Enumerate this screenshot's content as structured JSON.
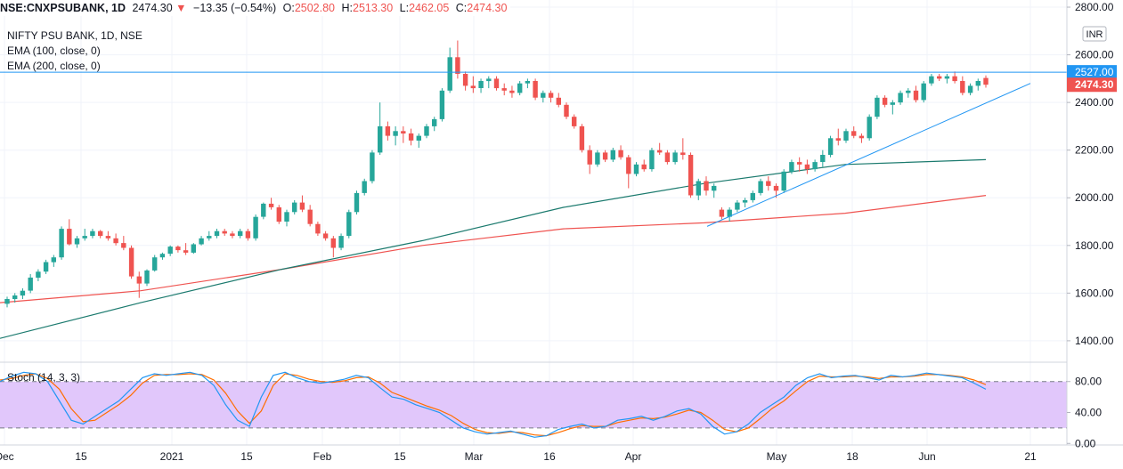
{
  "header": {
    "symbol": "NSE:CNXPSUBANK, 1D",
    "last": "2474.30",
    "change_arrow": "▼",
    "change": "−13.35 (−0.54%)",
    "o_label": "O:",
    "o_value": "2502.80",
    "h_label": "H:",
    "h_value": "2513.30",
    "l_label": "L:",
    "l_value": "2462.05",
    "c_label": "C:",
    "c_value": "2474.30"
  },
  "legend": {
    "title": "NIFTY PSU BANK, 1D, NSE",
    "ema100": "EMA (100, close, 0)",
    "ema200": "EMA (200, close, 0)"
  },
  "currency": "INR",
  "colors": {
    "up": "#26a69a",
    "down": "#ef5350",
    "ema100": "#1b7a6e",
    "ema200": "#ef5350",
    "hline": "#2196f3",
    "stoch_k": "#2196f3",
    "stoch_d": "#ff6d00",
    "stoch_band": "#e1c7fb"
  },
  "chart_data": [
    {
      "type": "candlestick",
      "x_ticks": [
        "Dec",
        "15",
        "2021",
        "15",
        "Feb",
        "15",
        "Mar",
        "16",
        "Apr",
        "May",
        "18",
        "Jun",
        "21"
      ],
      "y_ticks": [
        "2800.00",
        "2600.00",
        "2400.00",
        "2200.00",
        "2000.00",
        "1800.00",
        "1600.00",
        "1400.00"
      ],
      "ylim": [
        1310,
        2830
      ],
      "horizontal_line": 2527.0,
      "horizontal_line_label": "2527.00",
      "last_price_label": "2474.30",
      "trendline": [
        [
          1880,
          2480
        ]
      ],
      "candles": [
        [
          1555,
          1585,
          1540,
          1575
        ],
        [
          1575,
          1600,
          1560,
          1590
        ],
        [
          1590,
          1620,
          1575,
          1610
        ],
        [
          1610,
          1680,
          1600,
          1665
        ],
        [
          1665,
          1700,
          1650,
          1690
        ],
        [
          1690,
          1740,
          1680,
          1730
        ],
        [
          1730,
          1760,
          1710,
          1750
        ],
        [
          1750,
          1880,
          1740,
          1870
        ],
        [
          1870,
          1910,
          1800,
          1805
        ],
        [
          1805,
          1840,
          1790,
          1830
        ],
        [
          1830,
          1870,
          1820,
          1840
        ],
        [
          1840,
          1870,
          1830,
          1860
        ],
        [
          1860,
          1865,
          1830,
          1840
        ],
        [
          1840,
          1860,
          1820,
          1830
        ],
        [
          1830,
          1850,
          1800,
          1810
        ],
        [
          1810,
          1840,
          1780,
          1790
        ],
        [
          1790,
          1800,
          1660,
          1670
        ],
        [
          1670,
          1690,
          1580,
          1640
        ],
        [
          1640,
          1700,
          1630,
          1695
        ],
        [
          1695,
          1760,
          1690,
          1750
        ],
        [
          1750,
          1770,
          1740,
          1765
        ],
        [
          1765,
          1800,
          1755,
          1795
        ],
        [
          1795,
          1800,
          1770,
          1780
        ],
        [
          1780,
          1810,
          1760,
          1770
        ],
        [
          1770,
          1810,
          1765,
          1805
        ],
        [
          1805,
          1840,
          1800,
          1830
        ],
        [
          1830,
          1860,
          1820,
          1840
        ],
        [
          1840,
          1870,
          1830,
          1860
        ],
        [
          1860,
          1870,
          1840,
          1850
        ],
        [
          1850,
          1860,
          1830,
          1840
        ],
        [
          1840,
          1870,
          1830,
          1860
        ],
        [
          1860,
          1870,
          1820,
          1830
        ],
        [
          1830,
          1930,
          1820,
          1920
        ],
        [
          1920,
          1980,
          1910,
          1975
        ],
        [
          1975,
          2000,
          1950,
          1960
        ],
        [
          1960,
          1970,
          1890,
          1900
        ],
        [
          1900,
          1950,
          1880,
          1940
        ],
        [
          1940,
          1990,
          1930,
          1980
        ],
        [
          1980,
          2010,
          1940,
          1950
        ],
        [
          1950,
          1970,
          1880,
          1890
        ],
        [
          1890,
          1900,
          1840,
          1850
        ],
        [
          1850,
          1860,
          1820,
          1830
        ],
        [
          1830,
          1840,
          1750,
          1790
        ],
        [
          1790,
          1850,
          1780,
          1840
        ],
        [
          1840,
          1950,
          1830,
          1940
        ],
        [
          1940,
          2030,
          1930,
          2020
        ],
        [
          2020,
          2080,
          2010,
          2070
        ],
        [
          2070,
          2200,
          2060,
          2190
        ],
        [
          2190,
          2400,
          2180,
          2300
        ],
        [
          2300,
          2320,
          2240,
          2260
        ],
        [
          2260,
          2300,
          2220,
          2280
        ],
        [
          2280,
          2300,
          2230,
          2270
        ],
        [
          2270,
          2290,
          2220,
          2240
        ],
        [
          2240,
          2270,
          2210,
          2260
        ],
        [
          2260,
          2310,
          2250,
          2300
        ],
        [
          2300,
          2340,
          2280,
          2330
        ],
        [
          2330,
          2460,
          2320,
          2450
        ],
        [
          2450,
          2630,
          2440,
          2590
        ],
        [
          2590,
          2660,
          2500,
          2520
        ],
        [
          2520,
          2530,
          2450,
          2470
        ],
        [
          2470,
          2510,
          2440,
          2460
        ],
        [
          2460,
          2500,
          2440,
          2490
        ],
        [
          2490,
          2510,
          2460,
          2500
        ],
        [
          2500,
          2510,
          2450,
          2460
        ],
        [
          2460,
          2480,
          2430,
          2450
        ],
        [
          2450,
          2470,
          2420,
          2440
        ],
        [
          2440,
          2490,
          2430,
          2480
        ],
        [
          2480,
          2500,
          2460,
          2490
        ],
        [
          2490,
          2500,
          2410,
          2420
        ],
        [
          2420,
          2450,
          2400,
          2440
        ],
        [
          2440,
          2450,
          2400,
          2420
        ],
        [
          2420,
          2440,
          2380,
          2390
        ],
        [
          2390,
          2400,
          2330,
          2340
        ],
        [
          2340,
          2350,
          2290,
          2300
        ],
        [
          2300,
          2310,
          2190,
          2200
        ],
        [
          2200,
          2220,
          2100,
          2140
        ],
        [
          2140,
          2200,
          2130,
          2190
        ],
        [
          2190,
          2200,
          2150,
          2160
        ],
        [
          2160,
          2210,
          2150,
          2200
        ],
        [
          2200,
          2220,
          2160,
          2170
        ],
        [
          2170,
          2180,
          2040,
          2100
        ],
        [
          2100,
          2150,
          2090,
          2140
        ],
        [
          2140,
          2160,
          2110,
          2120
        ],
        [
          2120,
          2210,
          2110,
          2200
        ],
        [
          2200,
          2230,
          2180,
          2190
        ],
        [
          2190,
          2200,
          2140,
          2150
        ],
        [
          2150,
          2200,
          2140,
          2190
        ],
        [
          2190,
          2250,
          2160,
          2180
        ],
        [
          2180,
          2190,
          2000,
          2010
        ],
        [
          2010,
          2080,
          1990,
          2070
        ],
        [
          2070,
          2090,
          2010,
          2030
        ],
        [
          2030,
          2060,
          2000,
          2050
        ],
        [
          1950,
          1960,
          1910,
          1920
        ],
        [
          1920,
          1960,
          1900,
          1950
        ],
        [
          1950,
          1990,
          1940,
          1980
        ],
        [
          1980,
          2000,
          1960,
          1990
        ],
        [
          1990,
          2030,
          1980,
          2020
        ],
        [
          2020,
          2080,
          2010,
          2070
        ],
        [
          2070,
          2090,
          2030,
          2050
        ],
        [
          2050,
          2060,
          2000,
          2030
        ],
        [
          2030,
          2120,
          2020,
          2110
        ],
        [
          2110,
          2160,
          2100,
          2150
        ],
        [
          2150,
          2170,
          2110,
          2140
        ],
        [
          2140,
          2160,
          2100,
          2120
        ],
        [
          2120,
          2160,
          2110,
          2150
        ],
        [
          2150,
          2200,
          2130,
          2180
        ],
        [
          2180,
          2260,
          2170,
          2250
        ],
        [
          2250,
          2290,
          2220,
          2240
        ],
        [
          2240,
          2290,
          2230,
          2280
        ],
        [
          2280,
          2300,
          2250,
          2260
        ],
        [
          2260,
          2270,
          2230,
          2250
        ],
        [
          2250,
          2350,
          2240,
          2340
        ],
        [
          2340,
          2430,
          2330,
          2420
        ],
        [
          2420,
          2430,
          2380,
          2390
        ],
        [
          2390,
          2410,
          2350,
          2400
        ],
        [
          2400,
          2450,
          2390,
          2440
        ],
        [
          2440,
          2460,
          2420,
          2450
        ],
        [
          2450,
          2470,
          2400,
          2410
        ],
        [
          2410,
          2490,
          2400,
          2480
        ],
        [
          2480,
          2520,
          2470,
          2510
        ],
        [
          2510,
          2520,
          2490,
          2500
        ],
        [
          2500,
          2520,
          2480,
          2510
        ],
        [
          2510,
          2530,
          2480,
          2490
        ],
        [
          2490,
          2510,
          2430,
          2440
        ],
        [
          2440,
          2480,
          2430,
          2470
        ],
        [
          2470,
          2500,
          2450,
          2490
        ],
        [
          2502.8,
          2513.3,
          2462.05,
          2474.3
        ]
      ],
      "ema100": [
        1410,
        1560,
        1700,
        1820,
        1960,
        2060,
        2140,
        2160
      ],
      "ema200": [
        1560,
        1610,
        1700,
        1800,
        1870,
        1895,
        1935,
        2010
      ]
    },
    {
      "type": "line",
      "name": "Stoch (14, 3, 3)",
      "y_ticks": [
        "80.00",
        "40.00",
        "0.00"
      ],
      "ylim": [
        -2,
        105
      ],
      "band": [
        20,
        80
      ],
      "series": [
        {
          "values": [
            80,
            87,
            92,
            90,
            80,
            55,
            30,
            25,
            35,
            45,
            55,
            70,
            85,
            90,
            88,
            90,
            92,
            88,
            75,
            50,
            30,
            22,
            60,
            88,
            92,
            85,
            80,
            78,
            80,
            83,
            88,
            85,
            72,
            60,
            57,
            50,
            45,
            40,
            30,
            20,
            15,
            12,
            14,
            16,
            12,
            8,
            10,
            18,
            22,
            25,
            20,
            22,
            30,
            32,
            35,
            30,
            35,
            42,
            45,
            38,
            22,
            12,
            15,
            25,
            40,
            50,
            60,
            75,
            85,
            90,
            85,
            87,
            88,
            85,
            82,
            88,
            86,
            88,
            91,
            89,
            87,
            85,
            78,
            70
          ]
        },
        {
          "values": [
            82,
            84,
            88,
            90,
            84,
            70,
            45,
            28,
            30,
            40,
            50,
            62,
            78,
            88,
            89,
            89,
            90,
            89,
            82,
            65,
            42,
            26,
            42,
            75,
            90,
            88,
            83,
            80,
            79,
            81,
            85,
            86,
            78,
            66,
            60,
            54,
            48,
            43,
            36,
            26,
            18,
            14,
            13,
            15,
            14,
            11,
            10,
            14,
            19,
            23,
            22,
            22,
            27,
            30,
            33,
            32,
            34,
            38,
            43,
            40,
            30,
            18,
            15,
            20,
            32,
            45,
            55,
            68,
            80,
            87,
            86,
            86,
            87,
            86,
            84,
            86,
            86,
            87,
            89,
            89,
            88,
            86,
            82,
            76
          ]
        }
      ]
    }
  ]
}
